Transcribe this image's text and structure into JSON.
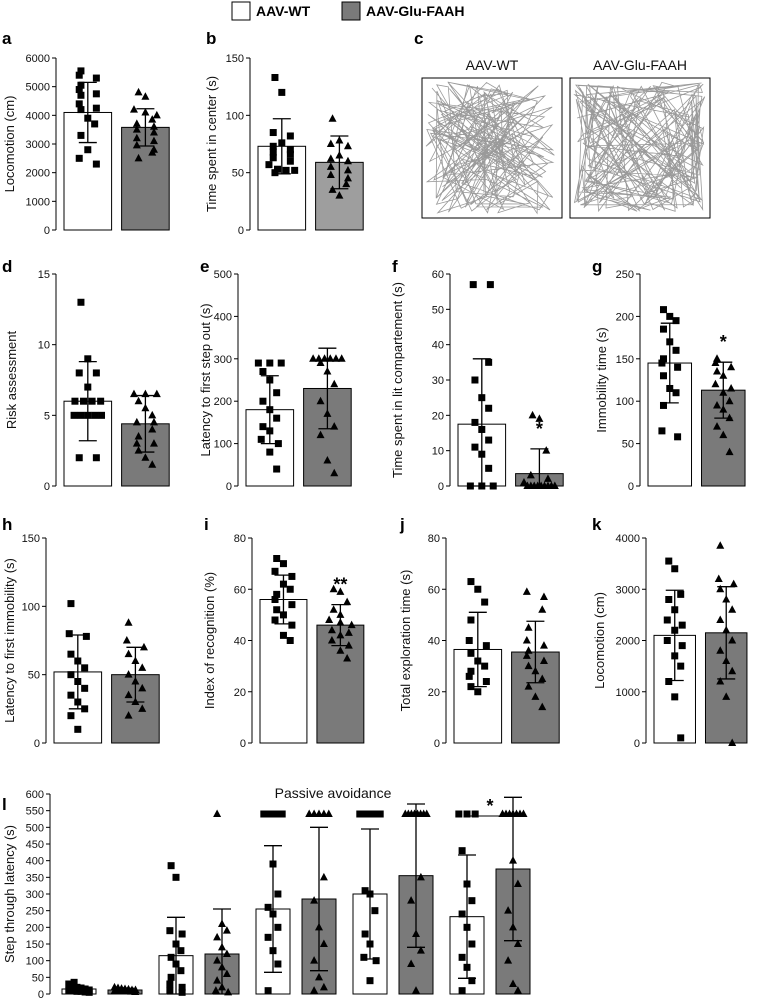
{
  "legend": {
    "items": [
      {
        "label": "AAV-WT",
        "color": "#ffffff"
      },
      {
        "label": "AAV-Glu-FAAH",
        "color": "#7a7a7a"
      }
    ]
  },
  "panel_c": {
    "letter": "c",
    "labels": [
      "AAV-WT",
      "AAV-Glu-FAAH"
    ]
  },
  "chart_data": [
    {
      "letter": "a",
      "type": "bar",
      "ylabel": "Locomotion (cm)",
      "ylim": [
        0,
        6000
      ],
      "yticks": [
        0,
        1000,
        2000,
        3000,
        4000,
        5000,
        6000
      ],
      "series": [
        {
          "name": "AAV-WT",
          "mean": 4100,
          "sd": 1050,
          "color": "#ffffff",
          "points": [
            5550,
            5400,
            5300,
            5050,
            4900,
            4750,
            4700,
            4400,
            4250,
            4200,
            3900,
            3700,
            3300,
            2800,
            2500,
            2300
          ]
        },
        {
          "name": "AAV-Glu-FAAH",
          "mean": 3580,
          "sd": 650,
          "color": "#7a7a7a",
          "points": [
            4800,
            4650,
            4200,
            4100,
            4000,
            3850,
            3700,
            3600,
            3500,
            3400,
            3200,
            3100,
            2950,
            2800,
            2700,
            2500
          ]
        }
      ],
      "sig": ""
    },
    {
      "letter": "b",
      "type": "bar",
      "ylabel": "Time spent in center (s)",
      "ylim": [
        0,
        150
      ],
      "yticks": [
        0,
        50,
        100,
        150
      ],
      "series": [
        {
          "name": "AAV-WT",
          "mean": 73,
          "sd": 24,
          "color": "#ffffff",
          "points": [
            133,
            120,
            85,
            82,
            76,
            73,
            70,
            68,
            66,
            63,
            60,
            57,
            53,
            52,
            52,
            50
          ]
        },
        {
          "name": "AAV-Glu-FAAH",
          "mean": 59,
          "sd": 23,
          "color": "#9e9e9e",
          "points": [
            97,
            78,
            75,
            73,
            65,
            62,
            60,
            55,
            52,
            48,
            45,
            40,
            35,
            30
          ]
        }
      ],
      "sig": ""
    },
    {
      "letter": "d",
      "type": "bar",
      "ylabel": "Risk assessment",
      "ylim": [
        0,
        15
      ],
      "yticks": [
        0,
        5,
        10,
        15
      ],
      "series": [
        {
          "name": "AAV-WT",
          "mean": 6.0,
          "sd": 2.8,
          "color": "#ffffff",
          "points": [
            13,
            9,
            8,
            8,
            7,
            6,
            6,
            6,
            6,
            5,
            5,
            5,
            5,
            5,
            2,
            2
          ]
        },
        {
          "name": "AAV-Glu-FAAH",
          "mean": 4.4,
          "sd": 2.0,
          "color": "#7a7a7a",
          "points": [
            6.5,
            6.5,
            6.5,
            6,
            5.5,
            5,
            4.5,
            4.5,
            4,
            3.5,
            3,
            3,
            2.5,
            2,
            1.5
          ]
        }
      ],
      "sig": ""
    },
    {
      "letter": "e",
      "type": "bar",
      "ylabel": "Latency to first step out (s)",
      "ylim": [
        0,
        500
      ],
      "yticks": [
        0,
        100,
        200,
        300,
        400,
        500
      ],
      "series": [
        {
          "name": "AAV-WT",
          "mean": 180,
          "sd": 80,
          "color": "#ffffff",
          "points": [
            290,
            290,
            290,
            270,
            250,
            220,
            200,
            180,
            160,
            140,
            130,
            110,
            100,
            80,
            40
          ]
        },
        {
          "name": "AAV-Glu-FAAH",
          "mean": 230,
          "sd": 95,
          "color": "#7a7a7a",
          "points": [
            300,
            300,
            300,
            300,
            300,
            300,
            290,
            270,
            240,
            200,
            170,
            140,
            120,
            60,
            30
          ]
        }
      ],
      "sig": ""
    },
    {
      "letter": "f",
      "type": "bar",
      "ylabel": "Time spent in lit compartement (s)",
      "ylim": [
        0,
        60
      ],
      "yticks": [
        0,
        10,
        20,
        30,
        40,
        50,
        60
      ],
      "series": [
        {
          "name": "AAV-WT",
          "mean": 17.5,
          "sd": 18.5,
          "color": "#ffffff",
          "points": [
            57,
            57,
            35,
            30,
            25,
            22,
            18,
            16,
            13,
            11,
            9,
            5,
            0,
            0,
            0
          ]
        },
        {
          "name": "AAV-Glu-FAAH",
          "mean": 3.5,
          "sd": 7,
          "color": "#7a7a7a",
          "points": [
            20,
            19,
            10,
            3,
            2,
            1,
            0,
            0,
            0,
            0,
            0,
            0,
            0,
            0,
            0
          ]
        }
      ],
      "sig": "*"
    },
    {
      "letter": "g",
      "type": "bar",
      "ylabel": "Immobility time (s)",
      "ylim": [
        0,
        250
      ],
      "yticks": [
        0,
        50,
        100,
        150,
        200,
        250
      ],
      "series": [
        {
          "name": "AAV-WT",
          "mean": 145,
          "sd": 47,
          "color": "#ffffff",
          "points": [
            208,
            200,
            195,
            185,
            170,
            160,
            150,
            145,
            140,
            130,
            115,
            110,
            95,
            65,
            58
          ]
        },
        {
          "name": "AAV-Glu-FAAH",
          "mean": 113,
          "sd": 33,
          "color": "#7a7a7a",
          "points": [
            150,
            145,
            140,
            135,
            130,
            120,
            115,
            110,
            100,
            95,
            90,
            80,
            70,
            60,
            40
          ]
        }
      ],
      "sig": "*"
    },
    {
      "letter": "h",
      "type": "bar",
      "ylabel": "Latency to first immobility (s)",
      "ylim": [
        0,
        150
      ],
      "yticks": [
        0,
        50,
        100,
        150
      ],
      "series": [
        {
          "name": "AAV-WT",
          "mean": 52,
          "sd": 27,
          "color": "#ffffff",
          "points": [
            102,
            80,
            78,
            65,
            60,
            55,
            50,
            45,
            40,
            35,
            30,
            25,
            20,
            10
          ]
        },
        {
          "name": "AAV-Glu-FAAH",
          "mean": 50,
          "sd": 20,
          "color": "#7a7a7a",
          "points": [
            88,
            75,
            70,
            65,
            60,
            55,
            50,
            45,
            40,
            35,
            30,
            25,
            20
          ]
        }
      ],
      "sig": ""
    },
    {
      "letter": "i",
      "type": "bar",
      "ylabel": "Index of recognition (%)",
      "ylim": [
        0,
        80
      ],
      "yticks": [
        0,
        20,
        40,
        60,
        80
      ],
      "series": [
        {
          "name": "AAV-WT",
          "mean": 56,
          "sd": 9.5,
          "color": "#ffffff",
          "points": [
            72,
            70,
            67,
            65,
            62,
            60,
            58,
            56,
            54,
            52,
            50,
            48,
            46,
            42,
            40
          ]
        },
        {
          "name": "AAV-Glu-FAAH",
          "mean": 46,
          "sd": 8,
          "color": "#7a7a7a",
          "points": [
            60,
            59,
            55,
            52,
            50,
            48,
            47,
            46,
            44,
            43,
            42,
            40,
            38,
            36,
            33
          ]
        }
      ],
      "sig": "**"
    },
    {
      "letter": "j",
      "type": "bar",
      "ylabel": "Total exploration time (s)",
      "ylim": [
        0,
        80
      ],
      "yticks": [
        0,
        20,
        40,
        60,
        80
      ],
      "series": [
        {
          "name": "AAV-WT",
          "mean": 36.5,
          "sd": 14.5,
          "color": "#ffffff",
          "points": [
            63,
            60,
            55,
            48,
            40,
            38,
            35,
            32,
            30,
            28,
            26,
            24,
            22,
            20
          ]
        },
        {
          "name": "AAV-Glu-FAAH",
          "mean": 35.5,
          "sd": 12,
          "color": "#7a7a7a",
          "points": [
            59,
            57,
            52,
            45,
            40,
            38,
            36,
            34,
            32,
            30,
            28,
            25,
            22,
            18,
            14
          ]
        }
      ],
      "sig": ""
    },
    {
      "letter": "k",
      "type": "bar",
      "ylabel": "Locomotion (cm)",
      "ylim": [
        0,
        4000
      ],
      "yticks": [
        0,
        1000,
        2000,
        3000,
        4000
      ],
      "series": [
        {
          "name": "AAV-WT",
          "mean": 2100,
          "sd": 880,
          "color": "#ffffff",
          "points": [
            3550,
            3400,
            2900,
            2800,
            2600,
            2400,
            2300,
            2200,
            2000,
            1900,
            1700,
            1500,
            1200,
            900,
            100
          ]
        },
        {
          "name": "AAV-Glu-FAAH",
          "mean": 2150,
          "sd": 900,
          "color": "#7a7a7a",
          "points": [
            3850,
            3200,
            3100,
            3000,
            2800,
            2600,
            2400,
            2200,
            2000,
            1800,
            1600,
            1400,
            1200,
            900,
            0
          ]
        }
      ],
      "sig": ""
    },
    {
      "letter": "l",
      "type": "bar",
      "title": "Passive avoidance",
      "ylabel": "Step through latency (s)",
      "ylim": [
        0,
        600
      ],
      "yticks": [
        0,
        50,
        100,
        150,
        200,
        250,
        300,
        350,
        400,
        450,
        500,
        550,
        600
      ],
      "groups": [
        {
          "series": [
            {
              "name": "AAV-WT",
              "mean": 15,
              "sd": 8,
              "color": "#ffffff",
              "points": [
                35,
                30,
                25,
                20,
                18,
                15,
                12,
                10,
                10,
                8,
                8,
                6,
                5
              ]
            },
            {
              "name": "AAV-Glu-FAAH",
              "mean": 12,
              "sd": 5,
              "color": "#7a7a7a",
              "points": [
                20,
                18,
                16,
                15,
                14,
                12,
                12,
                10,
                10,
                9,
                8,
                7,
                6
              ]
            }
          ],
          "sig": ""
        },
        {
          "series": [
            {
              "name": "AAV-WT",
              "mean": 115,
              "sd": 115,
              "color": "#ffffff",
              "points": [
                385,
                350,
                190,
                180,
                150,
                130,
                110,
                90,
                70,
                50,
                30,
                20,
                10,
                5
              ]
            },
            {
              "name": "AAV-Glu-FAAH",
              "mean": 120,
              "sd": 135,
              "color": "#7a7a7a",
              "points": [
                540,
                210,
                190,
                170,
                140,
                120,
                100,
                80,
                60,
                40,
                20,
                10,
                5
              ]
            }
          ],
          "sig": ""
        },
        {
          "series": [
            {
              "name": "AAV-WT",
              "mean": 255,
              "sd": 190,
              "color": "#ffffff",
              "points": [
                540,
                540,
                540,
                540,
                390,
                300,
                260,
                240,
                200,
                170,
                130,
                90,
                10
              ]
            },
            {
              "name": "AAV-Glu-FAAH",
              "mean": 285,
              "sd": 215,
              "color": "#7a7a7a",
              "points": [
                540,
                540,
                540,
                540,
                540,
                350,
                280,
                200,
                150,
                100,
                50,
                20,
                10
              ]
            }
          ],
          "sig": ""
        },
        {
          "series": [
            {
              "name": "AAV-WT",
              "mean": 300,
              "sd": 195,
              "color": "#ffffff",
              "points": [
                540,
                540,
                540,
                540,
                540,
                540,
                310,
                300,
                250,
                180,
                150,
                110,
                100,
                40
              ]
            },
            {
              "name": "AAV-Glu-FAAH",
              "mean": 355,
              "sd": 215,
              "color": "#7a7a7a",
              "points": [
                540,
                540,
                540,
                540,
                540,
                540,
                540,
                540,
                350,
                280,
                180,
                130,
                90,
                10
              ]
            }
          ],
          "sig": ""
        },
        {
          "series": [
            {
              "name": "AAV-WT",
              "mean": 232,
              "sd": 185,
              "color": "#ffffff",
              "points": [
                540,
                540,
                540,
                430,
                330,
                280,
                240,
                200,
                150,
                110,
                80,
                40,
                10
              ]
            },
            {
              "name": "AAV-Glu-FAAH",
              "mean": 375,
              "sd": 215,
              "color": "#7a7a7a",
              "points": [
                540,
                540,
                540,
                540,
                540,
                540,
                540,
                400,
                330,
                250,
                200,
                150,
                100,
                30,
                10
              ]
            }
          ],
          "sig": "*"
        }
      ]
    }
  ]
}
